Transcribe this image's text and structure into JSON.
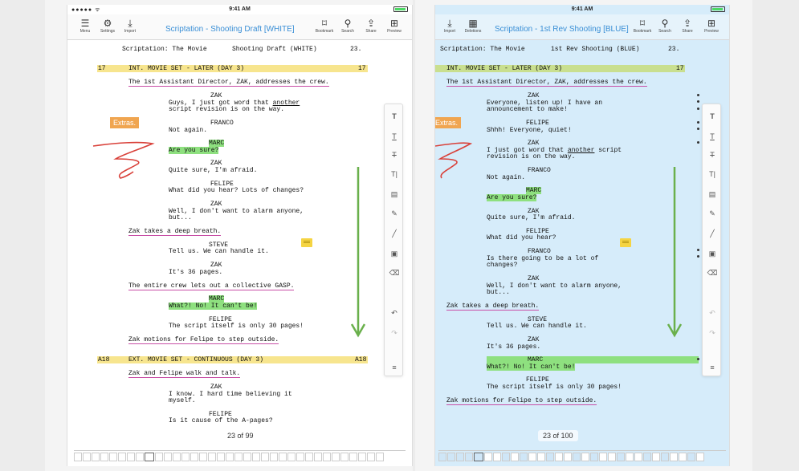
{
  "left": {
    "status": {
      "carrier": "●●●●● ᯤ",
      "time": "9:41 AM"
    },
    "toolbar": {
      "menu": "Menu",
      "settings": "Settings",
      "import": "Import",
      "title": "Scriptation - Shooting Draft [WHITE]",
      "bookmark": "Bookmark",
      "search": "Search",
      "share": "Share",
      "preview": "Preview"
    },
    "page_header": {
      "left": "Scriptation: The Movie",
      "mid": "Shooting Draft (WHITE)",
      "num": "23."
    },
    "scene17": {
      "num": "17",
      "heading": "INT. MOVIE SET - LATER (DAY 3)",
      "num_r": "17"
    },
    "lines": {
      "a1": "The 1st Assistant Director, ZAK, addresses the crew.",
      "c1": "ZAK",
      "d1a": "Guys, I just got word that ",
      "d1b": "another",
      "d1c": "script revision is on the way.",
      "c2": "FRANCO",
      "d2": "Not again.",
      "c3": "MARC",
      "d3": "Are you sure?",
      "c4": "ZAK",
      "d4": "Quite sure, I'm afraid.",
      "c5": "FELIPE",
      "d5": "What did you hear? Lots of changes?",
      "c6": "ZAK",
      "d6a": "Well, I don't want to alarm anyone,",
      "d6b": "but...",
      "a2": "Zak takes a deep breath.",
      "c7": "STEVE",
      "d7": "Tell us. We can handle it.",
      "c8": "ZAK",
      "d8": "It's 36 pages.",
      "a3": "The entire crew lets out a collective GASP.",
      "c9": "MARC",
      "d9": "What?! No! It can't be!",
      "c10": "FELIPE",
      "d10": "The script itself is only 30 pages!",
      "a4": "Zak motions for Felipe to step outside.",
      "a5": "Zak and Felipe walk and talk.",
      "c11": "ZAK",
      "d11a": "I know. I hard time believing it",
      "d11b": "myself.",
      "c12": "FELIPE",
      "d12": "Is it cause of the A-pages?"
    },
    "sceneA18": {
      "num": "A18",
      "heading": "EXT. MOVIE SET - CONTINUOUS (DAY 3)",
      "num_r": "A18"
    },
    "extras": "Extras.",
    "page_indicator": "23 of 99"
  },
  "right": {
    "status": {
      "time": "9:41 AM"
    },
    "toolbar": {
      "import": "Import",
      "deletions": "Deletions",
      "title": "Scriptation - 1st Rev Shooting [BLUE]",
      "bookmark": "Bookmark",
      "search": "Search",
      "share": "Share",
      "preview": "Preview"
    },
    "page_header": {
      "left": "Scriptation: The Movie",
      "mid": "1st Rev Shooting (BLUE)",
      "num": "23."
    },
    "scene17": {
      "heading": "INT. MOVIE SET - LATER (DAY 3)",
      "num_r": "17"
    },
    "lines": {
      "a1": "The 1st Assistant Director, ZAK, addresses the crew.",
      "c1": "ZAK",
      "d1a": "Everyone, listen up! I have an",
      "d1b": "announcement to make!",
      "c2": "FELIPE",
      "d2": "Shhh! Everyone, quiet!",
      "c3": "ZAK",
      "d3a": "I just got word that ",
      "d3b": "another",
      "d3c": " script",
      "d3d": "revision is on the way.",
      "c4": "FRANCO",
      "d4": "Not again.",
      "c5": "MARC",
      "d5": "Are you sure?",
      "c6": "ZAK",
      "d6": "Quite sure, I'm afraid.",
      "c7": "FELIPE",
      "d7": "What did you hear?",
      "c8": "FRANCO",
      "d8a": "Is there going to be a lot of",
      "d8b": "changes?",
      "c9": "ZAK",
      "d9a": "Well, I don't want to alarm anyone,",
      "d9b": "but...",
      "a2": "Zak takes a deep breath.",
      "c10": "STEVE",
      "d10": "Tell us. We can handle it.",
      "c11": "ZAK",
      "d11": "It's 36 pages.",
      "c12": "MARC",
      "d12": "What?! No! It can't be!",
      "c13": "FELIPE",
      "d13": "The script itself is only 30 pages!",
      "a3": "Zak motions for Felipe to step outside."
    },
    "extras": "Extras.",
    "page_indicator": "23 of 100"
  }
}
